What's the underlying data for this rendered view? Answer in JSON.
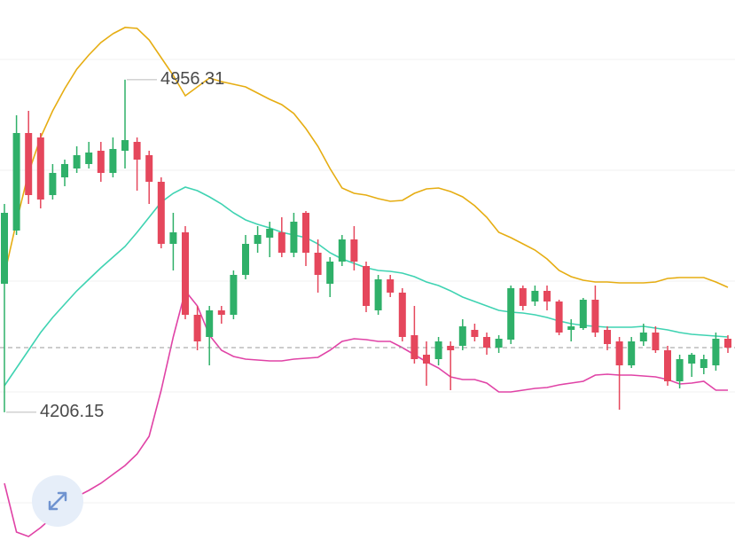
{
  "chart_data": {
    "type": "candlestick",
    "ylim": [
      3882,
      5136
    ],
    "gridlines": [
      5002,
      4752,
      4502,
      4252,
      4002
    ],
    "last_price": 4352,
    "up_color": "#2fb069",
    "down_color": "#e5475c",
    "open": [
      4496,
      4616,
      4836,
      4826,
      4696,
      4736,
      4756,
      4766,
      4796,
      4746,
      4796,
      4816,
      4786,
      4726,
      4586,
      4612,
      4426,
      4376,
      4436,
      4426,
      4516,
      4586,
      4600,
      4612,
      4566,
      4656,
      4566,
      4496,
      4546,
      4596,
      4536,
      4436,
      4506,
      4476,
      4380,
      4336,
      4326,
      4356,
      4356,
      4392,
      4376,
      4352,
      4370,
      4486,
      4456,
      4480,
      4456,
      4392,
      4396,
      4460,
      4392,
      4366,
      4312,
      4366,
      4386,
      4346,
      4276,
      4316,
      4306,
      4312,
      4372
    ],
    "high": [
      4676,
      4876,
      4886,
      4836,
      4766,
      4776,
      4806,
      4816,
      4816,
      4826,
      4956.31,
      4826,
      4796,
      4736,
      4656,
      4626,
      4446,
      4446,
      4446,
      4526,
      4606,
      4626,
      4636,
      4646,
      4656,
      4660,
      4596,
      4556,
      4606,
      4626,
      4546,
      4516,
      4516,
      4486,
      4446,
      4366,
      4376,
      4366,
      4416,
      4406,
      4386,
      4380,
      4492,
      4492,
      4492,
      4492,
      4460,
      4416,
      4464,
      4492,
      4400,
      4376,
      4376,
      4406,
      4400,
      4356,
      4336,
      4340,
      4336,
      4386,
      4380
    ],
    "low": [
      4206.15,
      4606,
      4676,
      4666,
      4686,
      4716,
      4746,
      4756,
      4726,
      4736,
      4756,
      4706,
      4676,
      4576,
      4526,
      4416,
      4346,
      4312,
      4406,
      4416,
      4506,
      4566,
      4556,
      4556,
      4556,
      4536,
      4476,
      4466,
      4536,
      4526,
      4432,
      4426,
      4466,
      4366,
      4316,
      4266,
      4312,
      4256,
      4346,
      4366,
      4336,
      4340,
      4360,
      4436,
      4446,
      4436,
      4380,
      4366,
      4392,
      4376,
      4346,
      4212,
      4306,
      4356,
      4340,
      4266,
      4260,
      4286,
      4292,
      4300,
      4340
    ],
    "close": [
      4656,
      4836,
      4696,
      4686,
      4746,
      4766,
      4786,
      4792,
      4746,
      4800,
      4820,
      4776,
      4726,
      4586,
      4612,
      4426,
      4366,
      4436,
      4426,
      4516,
      4586,
      4606,
      4620,
      4566,
      4636,
      4566,
      4516,
      4546,
      4596,
      4546,
      4446,
      4506,
      4476,
      4376,
      4326,
      4316,
      4366,
      4346,
      4400,
      4376,
      4352,
      4372,
      4486,
      4446,
      4480,
      4456,
      4386,
      4400,
      4460,
      4386,
      4360,
      4312,
      4366,
      4386,
      4346,
      4276,
      4326,
      4336,
      4326,
      4372,
      4352
    ],
    "series": [
      {
        "color": "#e6ad12",
        "values": [
          4516,
          4636,
          4746,
          4826,
          4886,
          4936,
          4980,
          5012,
          5040,
          5060,
          5074,
          5072,
          5046,
          5006,
          4966,
          4920,
          4940,
          4960,
          4952,
          4946,
          4940,
          4926,
          4912,
          4900,
          4880,
          4846,
          4806,
          4756,
          4712,
          4700,
          4696,
          4688,
          4682,
          4684,
          4700,
          4710,
          4712,
          4704,
          4692,
          4672,
          4646,
          4612,
          4600,
          4586,
          4572,
          4552,
          4526,
          4512,
          4504,
          4500,
          4500,
          4498,
          4498,
          4498,
          4500,
          4508,
          4510,
          4510,
          4510,
          4500,
          4488
        ]
      },
      {
        "color": "#3fd3b2",
        "values": [
          4266,
          4306,
          4346,
          4386,
          4420,
          4450,
          4480,
          4506,
          4532,
          4556,
          4580,
          4612,
          4646,
          4680,
          4700,
          4714,
          4706,
          4692,
          4676,
          4656,
          4640,
          4630,
          4622,
          4612,
          4606,
          4600,
          4586,
          4566,
          4552,
          4542,
          4532,
          4526,
          4524,
          4520,
          4512,
          4500,
          4492,
          4480,
          4466,
          4456,
          4446,
          4436,
          4432,
          4430,
          4426,
          4420,
          4412,
          4406,
          4402,
          4400,
          4398,
          4398,
          4398,
          4400,
          4396,
          4392,
          4386,
          4382,
          4380,
          4378,
          4376
        ]
      },
      {
        "color": "#e043a6",
        "values": [
          4046,
          3936,
          3926,
          3946,
          3970,
          3996,
          4016,
          4030,
          4046,
          4066,
          4086,
          4112,
          4152,
          4256,
          4376,
          4480,
          4446,
          4380,
          4346,
          4332,
          4326,
          4324,
          4322,
          4322,
          4326,
          4328,
          4330,
          4346,
          4366,
          4372,
          4370,
          4366,
          4366,
          4352,
          4336,
          4320,
          4306,
          4286,
          4280,
          4280,
          4272,
          4252,
          4252,
          4256,
          4260,
          4262,
          4268,
          4272,
          4276,
          4290,
          4292,
          4290,
          4290,
          4288,
          4286,
          4280,
          4270,
          4272,
          4276,
          4256,
          4256
        ]
      }
    ]
  }
}
